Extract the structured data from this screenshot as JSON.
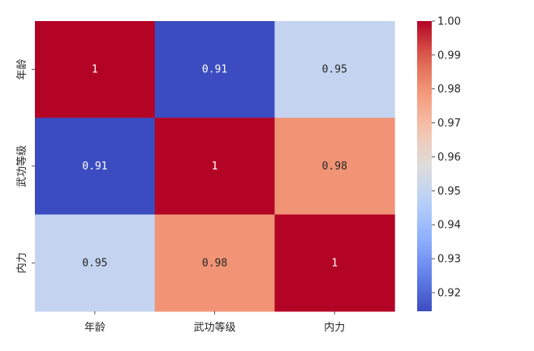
{
  "chart_data": {
    "type": "heatmap",
    "title": "",
    "xlabel": "",
    "ylabel": "",
    "x_labels": [
      "年龄",
      "武功等级",
      "内力"
    ],
    "y_labels": [
      "年龄",
      "武功等级",
      "内力"
    ],
    "matrix": [
      [
        1.0,
        0.91,
        0.95
      ],
      [
        0.91,
        1.0,
        0.98
      ],
      [
        0.95,
        0.98,
        1.0
      ]
    ],
    "annotations": [
      [
        "1",
        "0.91",
        "0.95"
      ],
      [
        "0.91",
        "1",
        "0.98"
      ],
      [
        "0.95",
        "0.98",
        "1"
      ]
    ],
    "colormap": "coolwarm",
    "value_range": [
      0.9145,
      1.0
    ],
    "colorbar": {
      "ticks": [
        1.0,
        0.99,
        0.98,
        0.97,
        0.96,
        0.95,
        0.94,
        0.93,
        0.92
      ],
      "tick_labels": [
        "1.00",
        "0.99",
        "0.98",
        "0.97",
        "0.96",
        "0.95",
        "0.94",
        "0.93",
        "0.92"
      ]
    },
    "colors": {
      "low": "#3b4cc0",
      "mid": "#dddddd",
      "high": "#b40426"
    },
    "grid": false,
    "legend": "colorbar-right"
  }
}
